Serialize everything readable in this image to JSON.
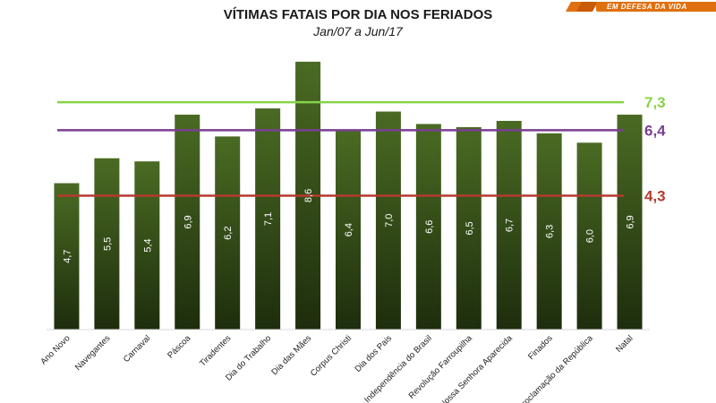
{
  "logo": {
    "tagline": "EM DEFESA DA VIDA"
  },
  "chart_data": {
    "type": "bar",
    "title": "VÍTIMAS FATAIS POR DIA NOS FERIADOS",
    "subtitle": "Jan/07 a Jun/17",
    "categories": [
      "Ano Novo",
      "Navegantes",
      "Carnaval",
      "Páscoa",
      "Tiradentes",
      "Dia do Trabalho",
      "Dia das Mães",
      "Corpus Christi",
      "Dia dos Pais",
      "Independência do Brasil",
      "Revolução Farroupilha",
      "Nossa Senhora Aparecida",
      "Finados",
      "Proclamação da República",
      "Natal"
    ],
    "values": [
      4.7,
      5.5,
      5.4,
      6.9,
      6.2,
      7.1,
      8.6,
      6.4,
      7.0,
      6.6,
      6.5,
      6.7,
      6.3,
      6.0,
      6.9
    ],
    "value_labels": [
      "4,7",
      "5,5",
      "5,4",
      "6,9",
      "6,2",
      "7,1",
      "8,6",
      "6,4",
      "7,0",
      "6,6",
      "6,5",
      "6,7",
      "6,3",
      "6,0",
      "6,9"
    ],
    "ylim": [
      0,
      9
    ],
    "grid": false,
    "bar_color": "#3d5a1c",
    "reference_lines": [
      {
        "value": 7.3,
        "label": "7,3",
        "color": "#86d34a"
      },
      {
        "value": 6.4,
        "label": "6,4",
        "color": "#7a3f93"
      },
      {
        "value": 4.3,
        "label": "4,3",
        "color": "#b53a2f"
      }
    ],
    "xlabel": "",
    "ylabel": ""
  }
}
